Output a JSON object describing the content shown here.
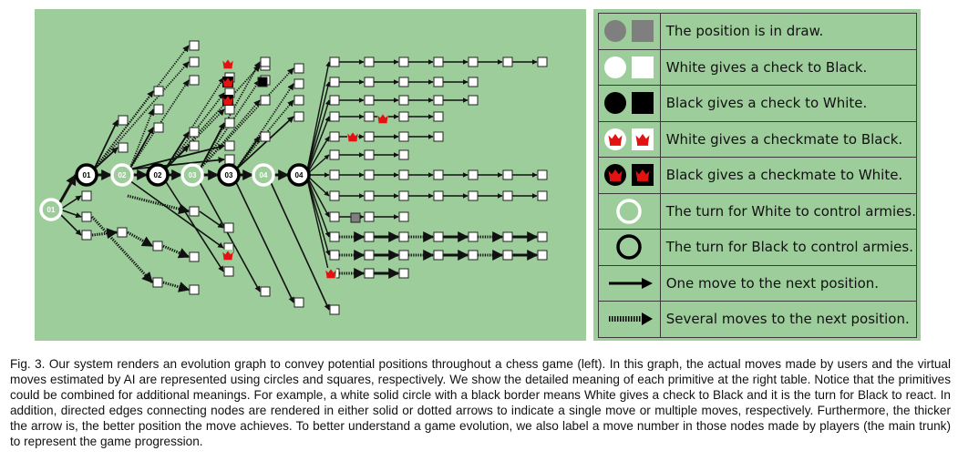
{
  "graph": {
    "trunk_labels": [
      "01",
      "01",
      "02",
      "02",
      "03",
      "03",
      "04",
      "04"
    ]
  },
  "legend": {
    "rows": [
      {
        "icon": "gray-circle-square",
        "text": "The position is in draw."
      },
      {
        "icon": "white-circle-square",
        "text": "White gives a check to Black."
      },
      {
        "icon": "black-circle-square",
        "text": "Black gives a check to White."
      },
      {
        "icon": "red-crown-white",
        "text": "White gives a checkmate to Black."
      },
      {
        "icon": "red-crown-black",
        "text": "Black gives a checkmate to White."
      },
      {
        "icon": "white-turn-ring",
        "text": "The turn for White to control armies."
      },
      {
        "icon": "black-turn-ring",
        "text": "The turn for Black to control armies."
      },
      {
        "icon": "solid-arrow",
        "text": "One move to the next position."
      },
      {
        "icon": "dotted-arrow",
        "text": "Several moves to the next position."
      }
    ]
  },
  "caption": {
    "text": "Fig. 3. Our system renders an evolution graph to convey potential positions throughout a chess game (left). In this graph, the actual moves made by users and the virtual moves estimated by AI are represented using circles and squares, respectively. We show the detailed meaning of each primitive at the right table. Notice that the primitives could be combined for additional meanings. For example, a white solid circle with a black border means White gives a check to Black and it is the turn for Black to react. In addition, directed edges connecting nodes are rendered in either solid or dotted arrows to indicate a single move or multiple moves, respectively. Furthermore, the thicker the arrow is, the better position the move achieves. To better understand a game evolution, we also label a move number in those nodes made by players (the main trunk) to represent the game progression."
  }
}
